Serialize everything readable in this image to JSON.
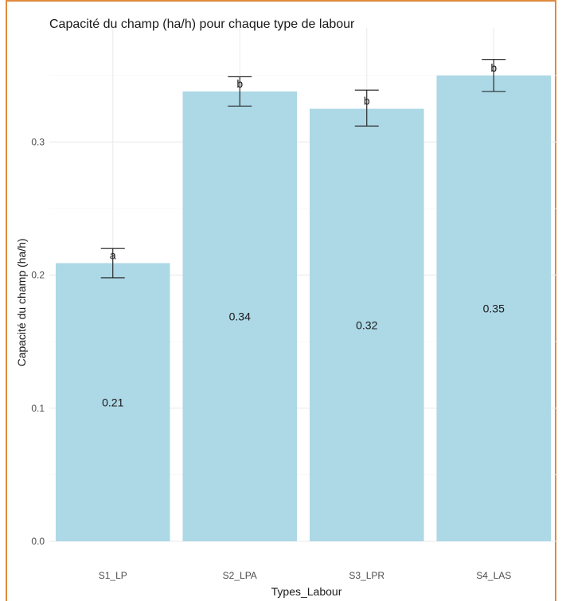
{
  "chart_data": {
    "type": "bar",
    "title": "Capacité du champ (ha/h) pour chaque type de labour",
    "xlabel": "Types_Labour",
    "ylabel": "Capacité du champ (ha/h)",
    "categories": [
      "S1_LP",
      "S2_LPA",
      "S3_LPR",
      "S4_LAS"
    ],
    "values": [
      0.209,
      0.338,
      0.325,
      0.35
    ],
    "value_labels": [
      "0.21",
      "0.34",
      "0.32",
      "0.35"
    ],
    "error_low": [
      0.198,
      0.327,
      0.312,
      0.338
    ],
    "error_high": [
      0.22,
      0.349,
      0.339,
      0.362
    ],
    "group_letters": [
      "a",
      "b",
      "b",
      "b"
    ],
    "ylim": [
      0,
      0.362
    ],
    "yticks": [
      0.0,
      0.1,
      0.2,
      0.3
    ],
    "ytick_labels": [
      "0.0",
      "0.1",
      "0.2",
      "0.3"
    ],
    "grid": true,
    "bar_color": "#add8e6"
  }
}
